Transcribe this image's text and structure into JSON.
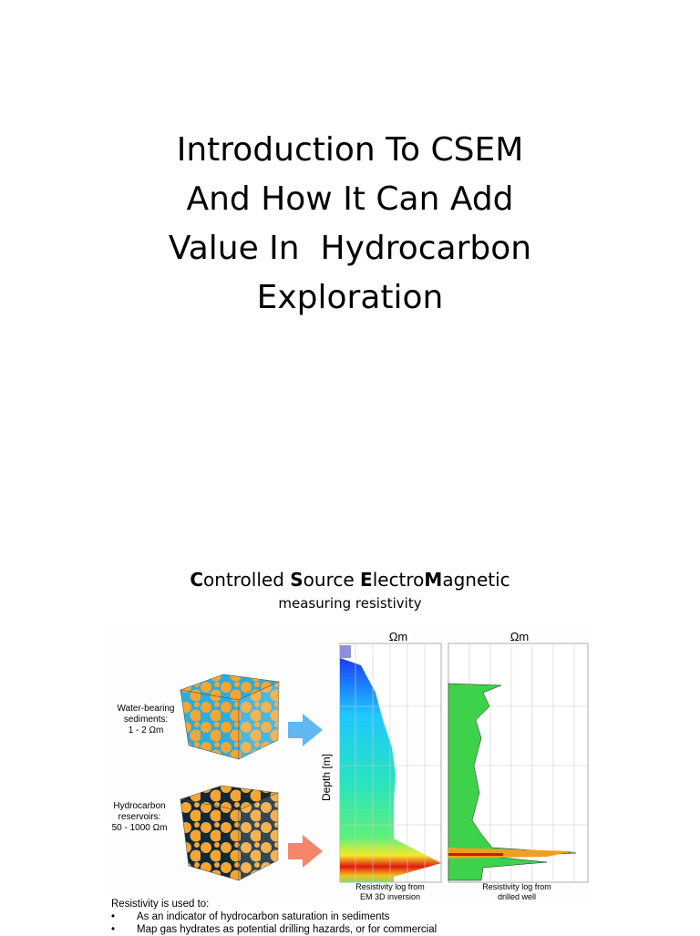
{
  "slide1": {
    "title_lines": [
      "Introduction To CSEM",
      "And How It Can Add",
      "Value In  Hydrocarbon",
      "Exploration"
    ]
  },
  "slide2": {
    "heading": [
      {
        "text": "C",
        "bold": true
      },
      {
        "text": "ontrolled ",
        "bold": false
      },
      {
        "text": "S",
        "bold": true
      },
      {
        "text": "ource ",
        "bold": false
      },
      {
        "text": "E",
        "bold": true
      },
      {
        "text": "lectro",
        "bold": false
      },
      {
        "text": "M",
        "bold": true
      },
      {
        "text": "agnetic",
        "bold": false
      }
    ],
    "subheading": "measuring resistivity",
    "figure": {
      "water_label": [
        "Water-bearing",
        "sediments:",
        "1 - 2 Ωm"
      ],
      "hydrocarbon_label": [
        "Hydrocarbon",
        "reservoirs:",
        "50 - 1000 Ωm"
      ],
      "unit_left": "Ωm",
      "unit_right": "Ωm",
      "depth_label": "Depth [m]",
      "caption_left": [
        "Resistivity log from",
        "EM 3D inversion"
      ],
      "caption_right": [
        "Resistivity log from",
        "drilled well"
      ]
    },
    "bullets": {
      "intro": "Resistivity is used to:",
      "items": [
        "As an indicator of hydrocarbon saturation in sediments",
        "Map gas hydrates as potential drilling hazards, or for commercial"
      ]
    }
  }
}
